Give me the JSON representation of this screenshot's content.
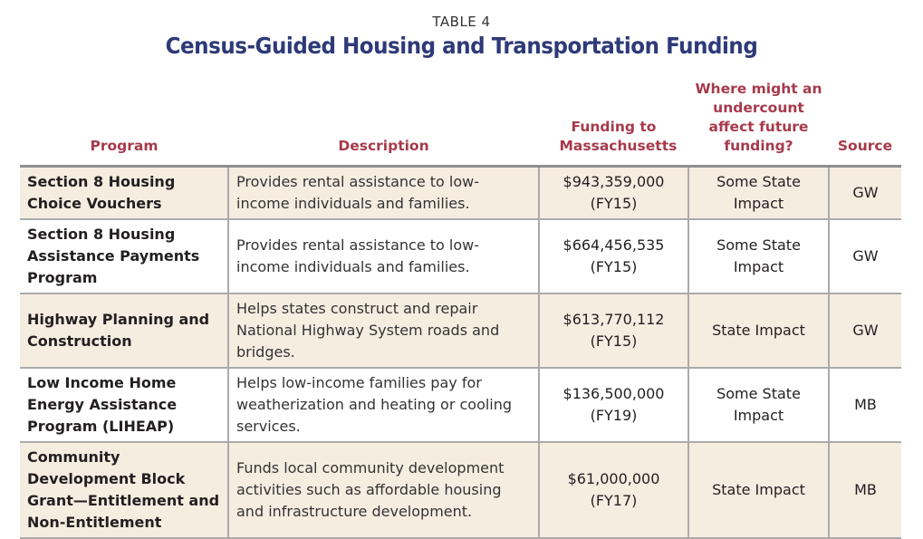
{
  "label": "TABLE 4",
  "title": "Census-Guided Housing and Transportation Funding",
  "colors": {
    "title": "#2e3a78",
    "header": "#a63a4b",
    "row_shade": "#f6ede1"
  },
  "columns": [
    "Program",
    "Description",
    "Funding to Massachusetts",
    "Where might an undercount affect future funding?",
    "Source"
  ],
  "rows": [
    {
      "program": "Section 8 Housing Choice Vouchers",
      "description": "Provides rental assistance to low-income individuals and families.",
      "funding": "$943,359,000",
      "year": "(FY15)",
      "impact": "Some State Impact",
      "source": "GW"
    },
    {
      "program": "Section 8 Housing Assistance Payments Program",
      "description": "Provides rental assistance to low-income individuals and families.",
      "funding": "$664,456,535",
      "year": "(FY15)",
      "impact": "Some State Impact",
      "source": "GW"
    },
    {
      "program": "Highway Planning and Construction",
      "description": "Helps states construct and repair National Highway System roads and bridges.",
      "funding": "$613,770,112",
      "year": "(FY15)",
      "impact": "State Impact",
      "source": "GW"
    },
    {
      "program": "Low Income Home Energy Assistance Program (LIHEAP)",
      "description": "Helps low-income families pay for weatherization and heating or cooling services.",
      "funding": "$136,500,000",
      "year": "(FY19)",
      "impact": "Some State Impact",
      "source": "MB"
    },
    {
      "program": "Community Development Block Grant—Entitlement and Non-Entitlement",
      "description": "Funds local community development activities such as affordable housing and infrastructure development.",
      "funding": "$61,000,000",
      "year": "(FY17)",
      "impact": "State Impact",
      "source": "MB"
    }
  ]
}
